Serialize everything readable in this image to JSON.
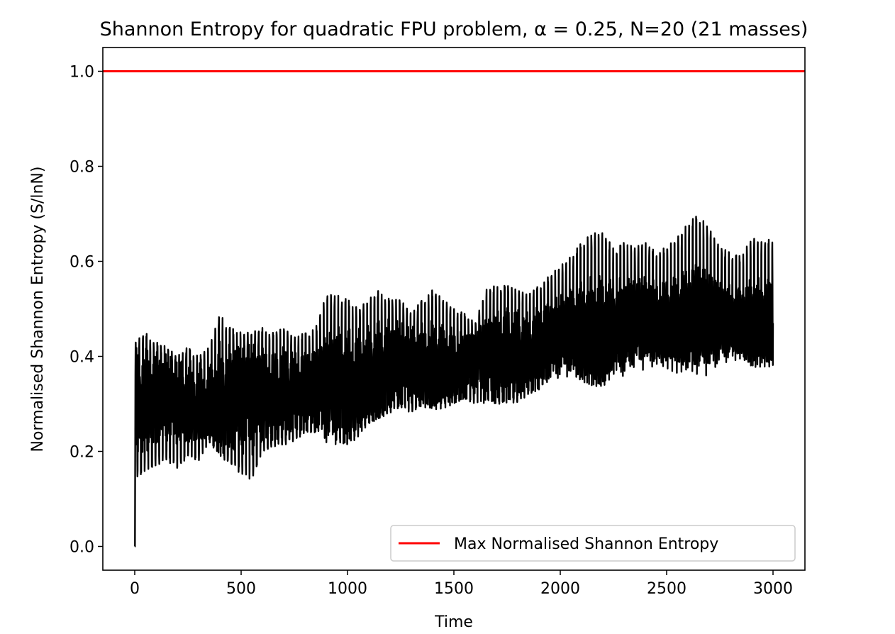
{
  "chart_data": {
    "type": "line",
    "title": "Shannon Entropy for quadratic FPU problem, α = 0.25, N=20 (21 masses)",
    "xlabel": "Time",
    "ylabel": "Normalised Shannon Entropy (S/lnN)",
    "xlim": [
      -150,
      3150
    ],
    "ylim": [
      -0.05,
      1.05
    ],
    "xticks": [
      0,
      500,
      1000,
      1500,
      2000,
      2500,
      3000
    ],
    "xtick_labels": [
      "0",
      "500",
      "1000",
      "1500",
      "2000",
      "2500",
      "3000"
    ],
    "yticks": [
      0.0,
      0.2,
      0.4,
      0.6,
      0.8,
      1.0
    ],
    "ytick_labels": [
      "0.0",
      "0.2",
      "0.4",
      "0.6",
      "0.8",
      "1.0"
    ],
    "grid": false,
    "legend_position": "lower-right",
    "series": [
      {
        "name": "",
        "color": "#000000",
        "x": [
          0,
          50,
          100,
          150,
          200,
          250,
          300,
          350,
          400,
          450,
          500,
          550,
          600,
          650,
          700,
          750,
          800,
          850,
          900,
          950,
          1000,
          1050,
          1100,
          1150,
          1200,
          1250,
          1300,
          1350,
          1400,
          1450,
          1500,
          1550,
          1600,
          1650,
          1700,
          1750,
          1800,
          1850,
          1900,
          1950,
          2000,
          2050,
          2100,
          2150,
          2200,
          2250,
          2300,
          2350,
          2400,
          2450,
          2500,
          2550,
          2600,
          2650,
          2700,
          2750,
          2800,
          2850,
          2900,
          2950,
          3000
        ],
        "y_mean": [
          0.31,
          0.31,
          0.31,
          0.31,
          0.3,
          0.3,
          0.3,
          0.3,
          0.31,
          0.31,
          0.31,
          0.31,
          0.32,
          0.32,
          0.33,
          0.33,
          0.33,
          0.33,
          0.33,
          0.34,
          0.34,
          0.35,
          0.36,
          0.37,
          0.38,
          0.38,
          0.38,
          0.38,
          0.38,
          0.38,
          0.38,
          0.38,
          0.39,
          0.39,
          0.4,
          0.41,
          0.41,
          0.41,
          0.42,
          0.43,
          0.44,
          0.45,
          0.45,
          0.45,
          0.45,
          0.46,
          0.46,
          0.47,
          0.47,
          0.47,
          0.47,
          0.47,
          0.48,
          0.48,
          0.47,
          0.47,
          0.47,
          0.47,
          0.47,
          0.47,
          0.47
        ],
        "y_max": [
          0.43,
          0.45,
          0.43,
          0.42,
          0.4,
          0.42,
          0.4,
          0.42,
          0.49,
          0.46,
          0.45,
          0.45,
          0.46,
          0.45,
          0.46,
          0.44,
          0.45,
          0.46,
          0.53,
          0.53,
          0.52,
          0.5,
          0.52,
          0.54,
          0.52,
          0.52,
          0.49,
          0.52,
          0.54,
          0.52,
          0.5,
          0.49,
          0.47,
          0.54,
          0.55,
          0.55,
          0.54,
          0.53,
          0.55,
          0.57,
          0.59,
          0.61,
          0.64,
          0.66,
          0.66,
          0.63,
          0.64,
          0.63,
          0.64,
          0.62,
          0.63,
          0.65,
          0.68,
          0.7,
          0.67,
          0.63,
          0.62,
          0.61,
          0.65,
          0.64,
          0.65
        ],
        "y_min": [
          0.14,
          0.16,
          0.17,
          0.18,
          0.16,
          0.19,
          0.18,
          0.22,
          0.19,
          0.17,
          0.15,
          0.14,
          0.2,
          0.21,
          0.21,
          0.22,
          0.24,
          0.24,
          0.25,
          0.22,
          0.21,
          0.23,
          0.26,
          0.27,
          0.28,
          0.29,
          0.28,
          0.3,
          0.3,
          0.3,
          0.3,
          0.31,
          0.3,
          0.31,
          0.3,
          0.3,
          0.3,
          0.32,
          0.33,
          0.36,
          0.38,
          0.38,
          0.38,
          0.38,
          0.36,
          0.39,
          0.38,
          0.4,
          0.4,
          0.4,
          0.4,
          0.4,
          0.41,
          0.42,
          0.41,
          0.42,
          0.43,
          0.43,
          0.42,
          0.42,
          0.42
        ]
      },
      {
        "name": "Max Normalised Shannon Entropy",
        "color": "#ff0000",
        "type": "hline",
        "y": 1.0
      }
    ]
  }
}
